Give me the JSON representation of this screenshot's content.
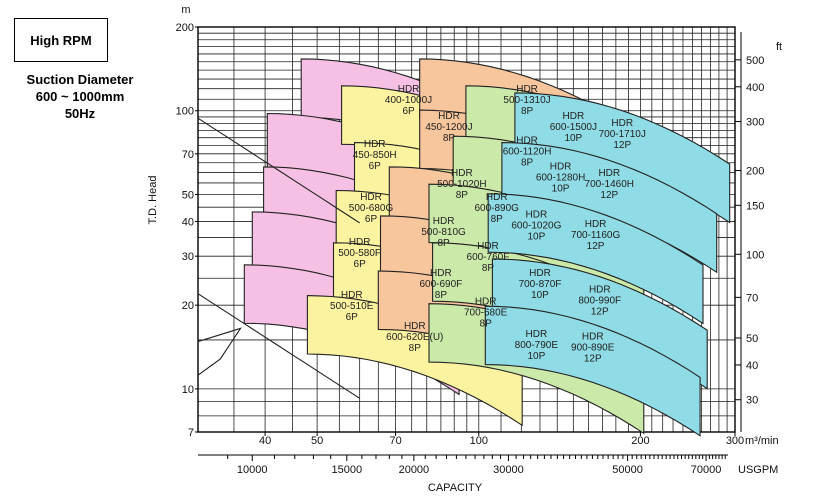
{
  "badge": "High RPM",
  "spec_lines": [
    "Suction Diameter",
    "600 ~ 1000mm",
    "50Hz"
  ],
  "chart_data": {
    "type": "area",
    "xlabel": "CAPACITY",
    "ylabel": "T.D. Head",
    "x_unit": "m3/min",
    "x2_unit": "USGPM",
    "y_unit": "m",
    "y2_unit": "ft",
    "x_scale": "log",
    "y_scale": "log",
    "xlim": [
      30,
      300
    ],
    "ylim": [
      7,
      200
    ],
    "grid": true,
    "x_ticks": [
      40,
      50,
      70,
      100,
      200,
      300
    ],
    "x2_ticks": [
      10000,
      15000,
      20000,
      30000,
      50000,
      70000
    ],
    "y_ticks": [
      7,
      10,
      20,
      30,
      40,
      50,
      70,
      100,
      200
    ],
    "y2_ticks": [
      30,
      40,
      50,
      70,
      100,
      150,
      200,
      300,
      400,
      500
    ],
    "colors": {
      "pink": "#f6c0e4",
      "yellow": "#fbf3a0",
      "orange": "#f8c69c",
      "green": "#cbe9a9",
      "cyan": "#8fdbe6"
    },
    "series": [
      {
        "name": "HDR 400-1000J 6P",
        "color": "pink",
        "q": 74,
        "h": 110
      },
      {
        "name": "HDR 450-850H 6P",
        "color": "pink",
        "q": 64,
        "h": 70
      },
      {
        "name": "HDR 500-680G 6P",
        "color": "pink",
        "q": 63,
        "h": 45
      },
      {
        "name": "HDR 500-580F 6P",
        "color": "pink",
        "q": 60,
        "h": 31
      },
      {
        "name": "HDR 500-510E 6P",
        "color": "pink",
        "q": 58,
        "h": 20
      },
      {
        "name": "HDR 450-1200J 8P",
        "color": "yellow",
        "q": 88,
        "h": 88
      },
      {
        "name": "HDR 500-1020H 8P",
        "color": "yellow",
        "q": 93,
        "h": 55
      },
      {
        "name": "HDR 500-810G 8P",
        "color": "yellow",
        "q": 86,
        "h": 37
      },
      {
        "name": "HDR 600-690F 8P",
        "color": "yellow",
        "q": 85,
        "h": 24
      },
      {
        "name": "HDR 600-620E(U) 8P",
        "color": "yellow",
        "q": 76,
        "h": 15.5
      },
      {
        "name": "HDR 500-1310J 8P",
        "color": "orange",
        "q": 123,
        "h": 110
      },
      {
        "name": "HDR 600-1120H 8P",
        "color": "orange",
        "q": 123,
        "h": 72
      },
      {
        "name": "HDR 600-890G 8P",
        "color": "orange",
        "q": 108,
        "h": 45
      },
      {
        "name": "HDR 600-760F 8P",
        "color": "orange",
        "q": 104,
        "h": 30
      },
      {
        "name": "HDR 700-680E 8P",
        "color": "orange",
        "q": 103,
        "h": 19
      },
      {
        "name": "HDR 600-1500J 10P",
        "color": "green",
        "q": 150,
        "h": 88
      },
      {
        "name": "HDR 600-1280H 10P",
        "color": "green",
        "q": 142,
        "h": 58
      },
      {
        "name": "HDR 600-1020G 10P",
        "color": "green",
        "q": 128,
        "h": 39
      },
      {
        "name": "HDR 700-870F 10P",
        "color": "green",
        "q": 130,
        "h": 24
      },
      {
        "name": "HDR 800-790E 10P",
        "color": "green",
        "q": 128,
        "h": 14.5
      },
      {
        "name": "HDR 700-1710J 12P",
        "color": "cyan",
        "q": 185,
        "h": 83
      },
      {
        "name": "HDR 700-1460H 12P",
        "color": "cyan",
        "q": 175,
        "h": 55
      },
      {
        "name": "HDR 700-1160G 12P",
        "color": "cyan",
        "q": 165,
        "h": 36
      },
      {
        "name": "HDR 800-990F 12P",
        "color": "cyan",
        "q": 168,
        "h": 21
      },
      {
        "name": "HDR 900-890E 12P",
        "color": "cyan",
        "q": 163,
        "h": 14.2
      }
    ]
  }
}
